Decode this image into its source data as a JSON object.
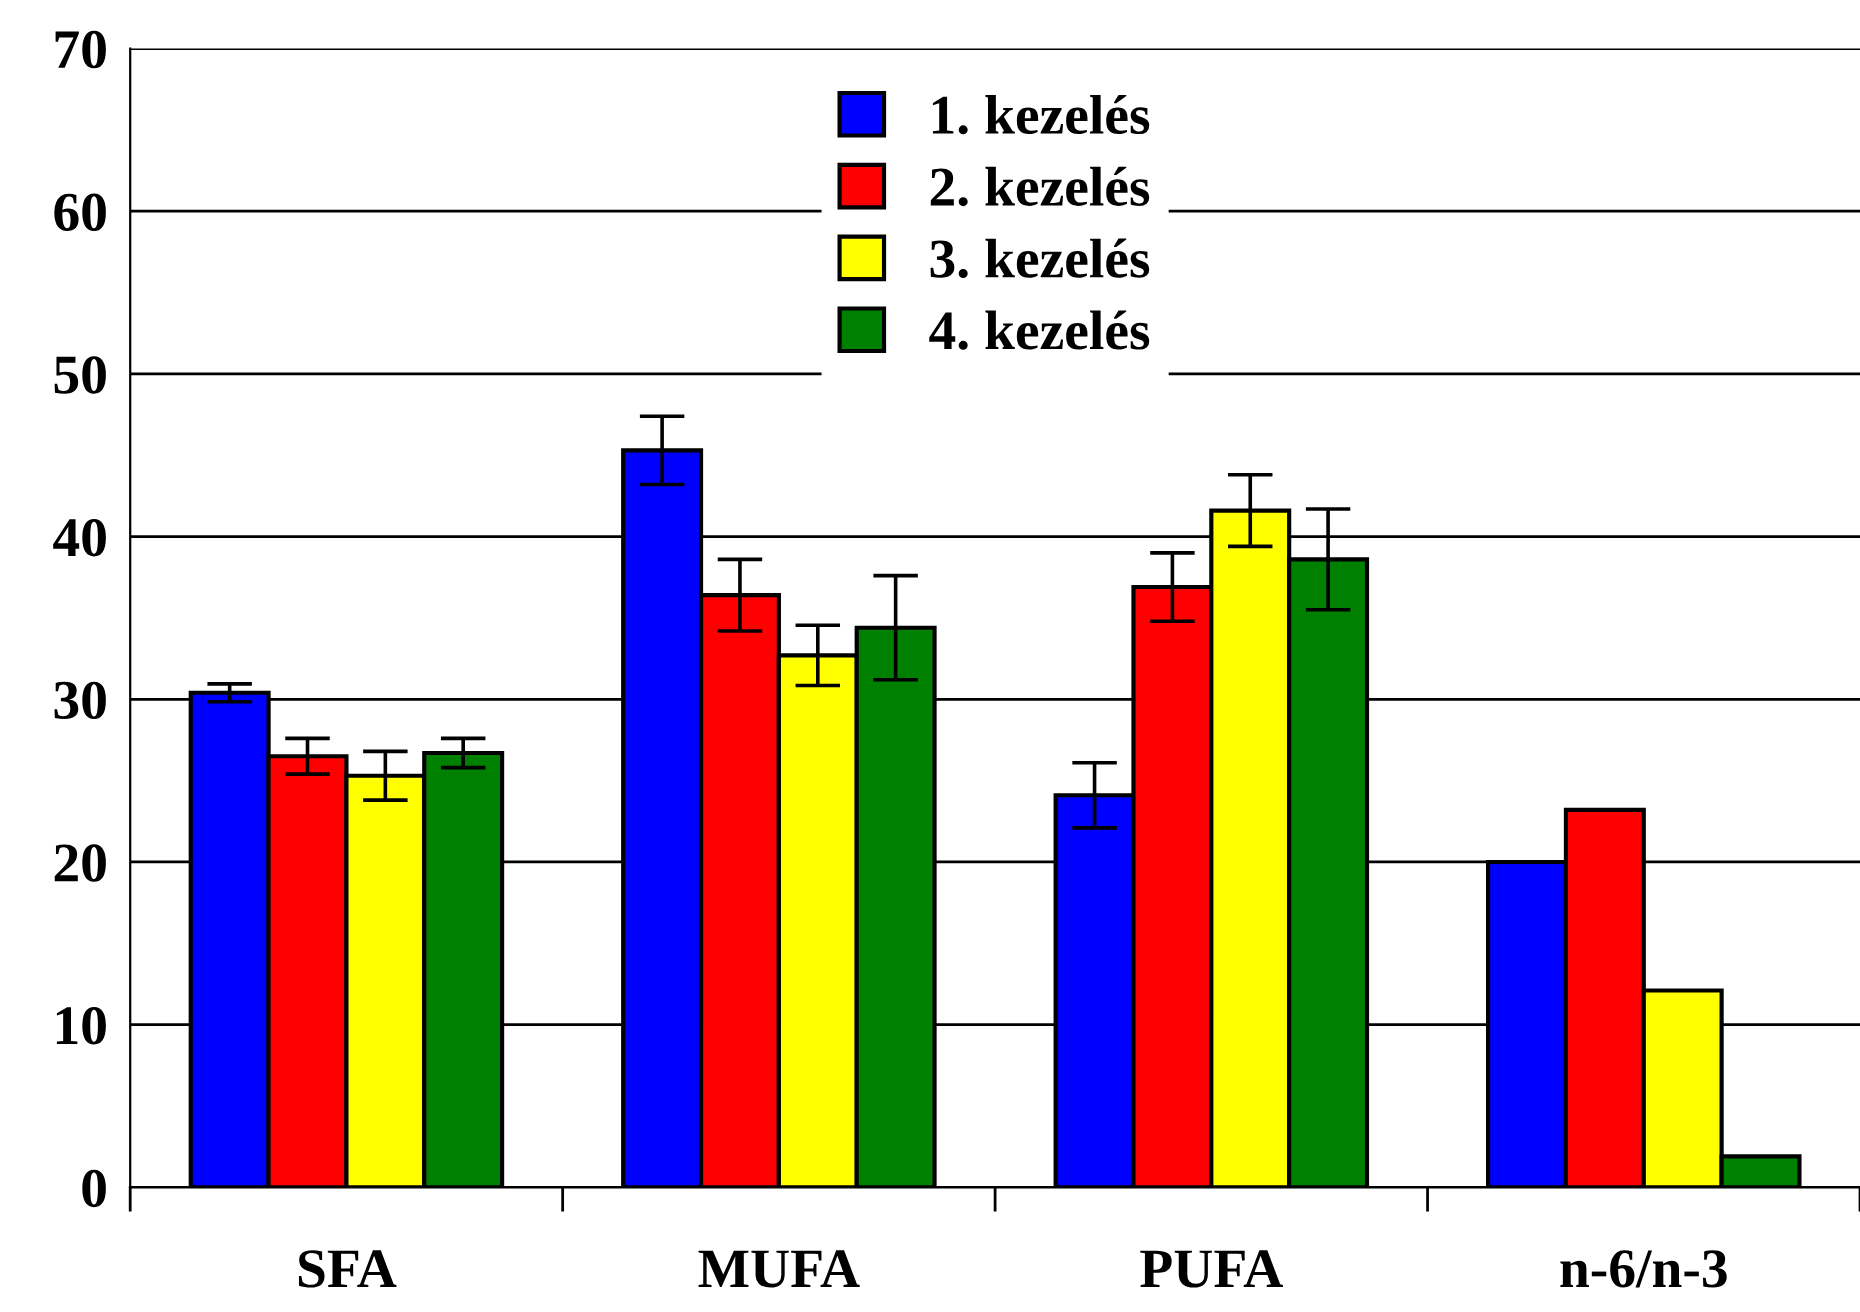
{
  "chart_data": {
    "type": "bar",
    "categories": [
      "SFA",
      "MUFA",
      "PUFA",
      "n-6/n-3"
    ],
    "series": [
      {
        "name": "1. kezelés",
        "color": "#0000ff",
        "values": [
          30.4,
          45.3,
          24.1,
          20.0
        ],
        "errors": [
          0.55,
          2.1,
          2.0,
          null
        ]
      },
      {
        "name": "2. kezelés",
        "color": "#ff0000",
        "values": [
          26.5,
          36.4,
          36.9,
          23.2
        ],
        "errors": [
          1.1,
          2.2,
          2.1,
          null
        ]
      },
      {
        "name": "3. kezelés",
        "color": "#ffff00",
        "values": [
          25.3,
          32.7,
          41.6,
          12.1
        ],
        "errors": [
          1.5,
          1.85,
          2.2,
          null
        ]
      },
      {
        "name": "4. kezelés",
        "color": "#008000",
        "values": [
          26.7,
          34.4,
          38.6,
          1.9
        ],
        "errors": [
          0.9,
          3.2,
          3.1,
          null
        ]
      }
    ],
    "ylim": [
      0,
      70
    ],
    "yticks": [
      0,
      10,
      20,
      30,
      40,
      50,
      60,
      70
    ],
    "grid": "y",
    "legend": "top"
  }
}
